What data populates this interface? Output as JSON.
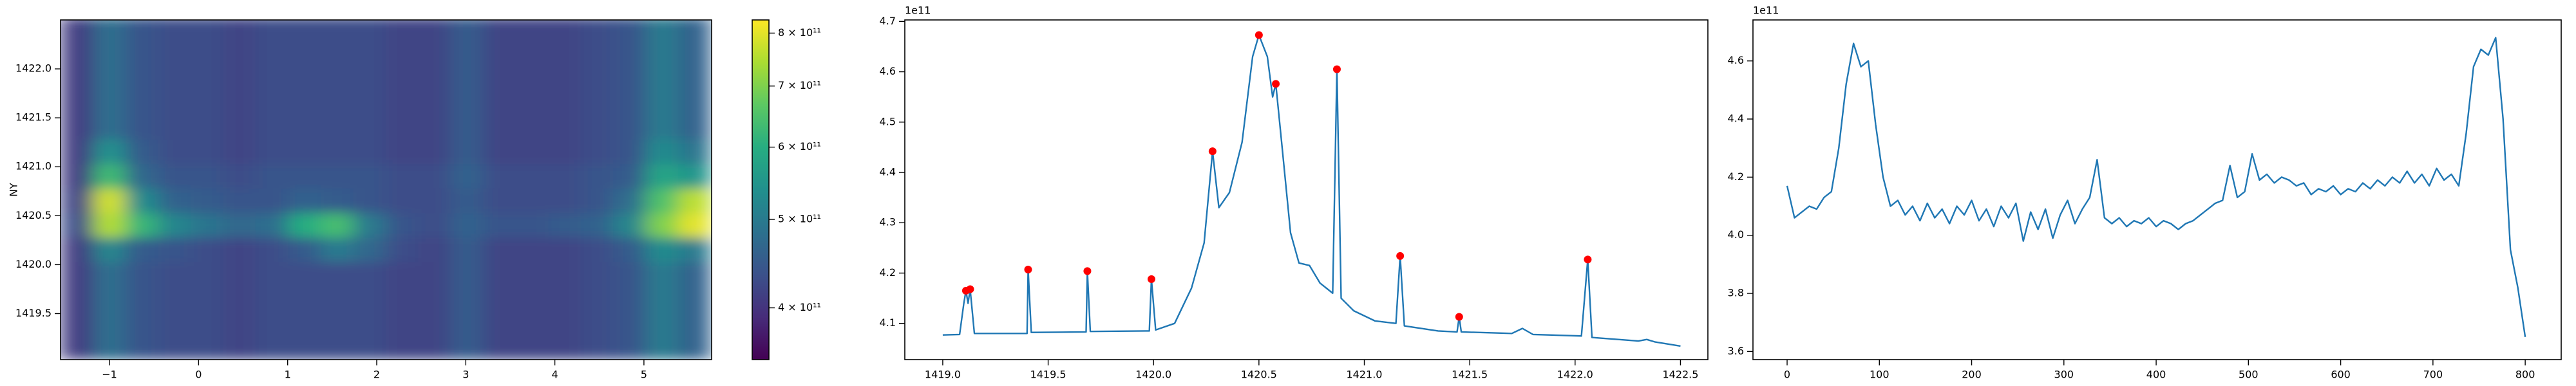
{
  "chart_data": [
    {
      "type": "heatmap",
      "ylabel": "NY",
      "xlim": [
        -1.55,
        5.76
      ],
      "ylim": [
        1419.03,
        1422.5
      ],
      "xticks": [
        {
          "value": -1,
          "label": "−1"
        },
        0,
        1,
        2,
        3,
        4,
        5
      ],
      "yticks": [
        1419.5,
        {
          "value": 1420,
          "label": "1420.0"
        },
        1420.5,
        {
          "value": 1421,
          "label": "1421.0"
        },
        1421.5,
        {
          "value": 1422,
          "label": "1422.0"
        }
      ],
      "x_edges": [
        -1.55,
        -1.185,
        -0.82,
        -0.455,
        -0.09,
        0.275,
        0.64,
        1.005,
        1.37,
        1.735,
        2.1,
        2.465,
        2.83,
        3.195,
        3.56,
        3.925,
        4.29,
        4.655,
        5.02,
        5.385,
        5.75
      ],
      "y_edges": [
        1419.03,
        1419.28,
        1419.53,
        1419.78,
        1420.03,
        1420.28,
        1420.53,
        1420.78,
        1421.03,
        1421.28,
        1421.53,
        1421.78,
        1422.03,
        1422.28,
        1422.53
      ],
      "z": [
        [
          410000000000.0,
          480000000000.0,
          440000000000.0,
          430000000000.0,
          430000000000.0,
          420000000000.0,
          430000000000.0,
          430000000000.0,
          430000000000.0,
          430000000000.0,
          420000000000.0,
          420000000000.0,
          450000000000.0,
          420000000000.0,
          420000000000.0,
          420000000000.0,
          430000000000.0,
          440000000000.0,
          500000000000.0,
          460000000000.0
        ],
        [
          410000000000.0,
          480000000000.0,
          440000000000.0,
          430000000000.0,
          430000000000.0,
          420000000000.0,
          430000000000.0,
          430000000000.0,
          430000000000.0,
          430000000000.0,
          420000000000.0,
          420000000000.0,
          450000000000.0,
          420000000000.0,
          420000000000.0,
          420000000000.0,
          430000000000.0,
          440000000000.0,
          500000000000.0,
          460000000000.0
        ],
        [
          410000000000.0,
          480000000000.0,
          440000000000.0,
          430000000000.0,
          430000000000.0,
          420000000000.0,
          430000000000.0,
          430000000000.0,
          430000000000.0,
          430000000000.0,
          420000000000.0,
          420000000000.0,
          450000000000.0,
          420000000000.0,
          420000000000.0,
          420000000000.0,
          430000000000.0,
          440000000000.0,
          500000000000.0,
          460000000000.0
        ],
        [
          410000000000.0,
          480000000000.0,
          440000000000.0,
          430000000000.0,
          430000000000.0,
          420000000000.0,
          430000000000.0,
          430000000000.0,
          430000000000.0,
          430000000000.0,
          420000000000.0,
          420000000000.0,
          450000000000.0,
          420000000000.0,
          420000000000.0,
          420000000000.0,
          430000000000.0,
          440000000000.0,
          500000000000.0,
          460000000000.0
        ],
        [
          410000000000.0,
          520000000000.0,
          450000000000.0,
          440000000000.0,
          430000000000.0,
          420000000000.0,
          430000000000.0,
          450000000000.0,
          500000000000.0,
          470000000000.0,
          430000000000.0,
          420000000000.0,
          450000000000.0,
          420000000000.0,
          420000000000.0,
          420000000000.0,
          430000000000.0,
          450000000000.0,
          530000000000.0,
          500000000000.0
        ],
        [
          430000000000.0,
          750000000000.0,
          620000000000.0,
          520000000000.0,
          490000000000.0,
          470000000000.0,
          480000000000.0,
          600000000000.0,
          640000000000.0,
          500000000000.0,
          440000000000.0,
          430000000000.0,
          460000000000.0,
          440000000000.0,
          440000000000.0,
          450000000000.0,
          460000000000.0,
          520000000000.0,
          700000000000.0,
          800000000000.0
        ],
        [
          420000000000.0,
          780000000000.0,
          530000000000.0,
          460000000000.0,
          450000000000.0,
          440000000000.0,
          440000000000.0,
          460000000000.0,
          450000000000.0,
          440000000000.0,
          430000000000.0,
          430000000000.0,
          450000000000.0,
          430000000000.0,
          430000000000.0,
          430000000000.0,
          440000000000.0,
          480000000000.0,
          650000000000.0,
          760000000000.0
        ],
        [
          410000000000.0,
          630000000000.0,
          470000000000.0,
          440000000000.0,
          440000000000.0,
          430000000000.0,
          440000000000.0,
          440000000000.0,
          440000000000.0,
          440000000000.0,
          430000000000.0,
          430000000000.0,
          460000000000.0,
          430000000000.0,
          430000000000.0,
          430000000000.0,
          440000000000.0,
          450000000000.0,
          580000000000.0,
          550000000000.0
        ],
        [
          410000000000.0,
          540000000000.0,
          450000000000.0,
          430000000000.0,
          430000000000.0,
          420000000000.0,
          430000000000.0,
          430000000000.0,
          430000000000.0,
          430000000000.0,
          420000000000.0,
          420000000000.0,
          450000000000.0,
          420000000000.0,
          420000000000.0,
          420000000000.0,
          430000000000.0,
          440000000000.0,
          530000000000.0,
          490000000000.0
        ],
        [
          410000000000.0,
          480000000000.0,
          440000000000.0,
          430000000000.0,
          430000000000.0,
          420000000000.0,
          430000000000.0,
          430000000000.0,
          430000000000.0,
          430000000000.0,
          420000000000.0,
          420000000000.0,
          450000000000.0,
          420000000000.0,
          420000000000.0,
          420000000000.0,
          430000000000.0,
          440000000000.0,
          500000000000.0,
          460000000000.0
        ],
        [
          410000000000.0,
          480000000000.0,
          440000000000.0,
          430000000000.0,
          430000000000.0,
          420000000000.0,
          430000000000.0,
          430000000000.0,
          430000000000.0,
          430000000000.0,
          420000000000.0,
          420000000000.0,
          450000000000.0,
          420000000000.0,
          420000000000.0,
          420000000000.0,
          430000000000.0,
          440000000000.0,
          500000000000.0,
          460000000000.0
        ],
        [
          410000000000.0,
          480000000000.0,
          440000000000.0,
          430000000000.0,
          430000000000.0,
          420000000000.0,
          430000000000.0,
          430000000000.0,
          430000000000.0,
          430000000000.0,
          420000000000.0,
          420000000000.0,
          450000000000.0,
          420000000000.0,
          420000000000.0,
          420000000000.0,
          430000000000.0,
          440000000000.0,
          500000000000.0,
          460000000000.0
        ],
        [
          410000000000.0,
          480000000000.0,
          440000000000.0,
          430000000000.0,
          430000000000.0,
          420000000000.0,
          430000000000.0,
          430000000000.0,
          430000000000.0,
          430000000000.0,
          420000000000.0,
          420000000000.0,
          450000000000.0,
          420000000000.0,
          420000000000.0,
          420000000000.0,
          430000000000.0,
          440000000000.0,
          500000000000.0,
          460000000000.0
        ],
        [
          410000000000.0,
          480000000000.0,
          440000000000.0,
          430000000000.0,
          430000000000.0,
          420000000000.0,
          430000000000.0,
          430000000000.0,
          430000000000.0,
          430000000000.0,
          420000000000.0,
          420000000000.0,
          450000000000.0,
          420000000000.0,
          420000000000.0,
          420000000000.0,
          430000000000.0,
          440000000000.0,
          500000000000.0,
          460000000000.0
        ]
      ],
      "colorbar": {
        "cmap": "viridis",
        "scale": "log",
        "lim": [
          351000000000.0,
          827000000000.0
        ],
        "ticks": [
          {
            "value": 400000000000.0,
            "label": "4 × 10¹¹"
          },
          {
            "value": 500000000000.0,
            "label": "5 × 10¹¹"
          },
          {
            "value": 600000000000.0,
            "label": "6 × 10¹¹"
          },
          {
            "value": 700000000000.0,
            "label": "7 × 10¹¹"
          },
          {
            "value": 800000000000.0,
            "label": "8 × 10¹¹"
          }
        ]
      }
    },
    {
      "type": "line",
      "offset_text": "1e11",
      "xlim": [
        1418.82,
        1422.63
      ],
      "ylim": [
        4.028,
        4.703
      ],
      "xticks": [
        {
          "value": 1419,
          "label": "1419.0"
        },
        1419.5,
        {
          "value": 1420,
          "label": "1420.0"
        },
        1420.5,
        {
          "value": 1421,
          "label": "1421.0"
        },
        1421.5,
        {
          "value": 1422,
          "label": "1422.0"
        },
        1422.5
      ],
      "yticks": [
        4.1,
        4.2,
        4.3,
        4.4,
        4.5,
        4.6,
        4.7
      ],
      "series": [
        {
          "style": "line",
          "color": "#1f77b4",
          "x": [
            1419.0,
            1419.08,
            1419.1,
            1419.11,
            1419.12,
            1419.13,
            1419.15,
            1419.4,
            1419.405,
            1419.42,
            1419.68,
            1419.686,
            1419.7,
            1419.98,
            1419.99,
            1420.01,
            1420.1,
            1420.18,
            1420.24,
            1420.28,
            1420.31,
            1420.36,
            1420.42,
            1420.47,
            1420.5,
            1420.54,
            1420.565,
            1420.58,
            1420.61,
            1420.65,
            1420.69,
            1420.74,
            1420.79,
            1420.85,
            1420.87,
            1420.89,
            1420.95,
            1421.05,
            1421.15,
            1421.17,
            1421.19,
            1421.35,
            1421.44,
            1421.45,
            1421.46,
            1421.7,
            1421.75,
            1421.8,
            1422.03,
            1422.06,
            1422.08,
            1422.3,
            1422.34,
            1422.38,
            1422.5
          ],
          "values": [
            4.077,
            4.078,
            4.14,
            4.165,
            4.14,
            4.168,
            4.08,
            4.08,
            4.207,
            4.082,
            4.083,
            4.204,
            4.084,
            4.085,
            4.188,
            4.087,
            4.1,
            4.17,
            4.26,
            4.442,
            4.33,
            4.36,
            4.46,
            4.63,
            4.673,
            4.63,
            4.55,
            4.576,
            4.45,
            4.28,
            4.22,
            4.215,
            4.18,
            4.16,
            4.605,
            4.15,
            4.125,
            4.105,
            4.1,
            4.234,
            4.095,
            4.085,
            4.083,
            4.113,
            4.083,
            4.08,
            4.09,
            4.078,
            4.075,
            4.227,
            4.072,
            4.065,
            4.068,
            4.063,
            4.055
          ]
        },
        {
          "style": "points",
          "color": "#ff0000",
          "x": [
            1419.11,
            1419.13,
            1419.405,
            1419.686,
            1419.99,
            1420.28,
            1420.5,
            1420.58,
            1420.87,
            1421.17,
            1421.45,
            1422.06
          ],
          "values": [
            4.165,
            4.168,
            4.207,
            4.204,
            4.188,
            4.442,
            4.673,
            4.576,
            4.605,
            4.234,
            4.113,
            4.227
          ]
        }
      ]
    },
    {
      "type": "line",
      "offset_text": "1e11",
      "xlim": [
        -37,
        839
      ],
      "ylim": [
        3.572,
        4.741
      ],
      "xticks": [
        0,
        100,
        200,
        300,
        400,
        500,
        600,
        700,
        800
      ],
      "yticks": [
        3.6,
        3.8,
        {
          "value": 4,
          "label": "4.0"
        },
        4.2,
        4.4,
        4.6
      ],
      "series": [
        {
          "style": "line",
          "color": "#1f77b4",
          "x": [
            0,
            8,
            16,
            24,
            32,
            40,
            48,
            56,
            64,
            72,
            80,
            88,
            96,
            104,
            112,
            120,
            128,
            136,
            144,
            152,
            160,
            168,
            176,
            184,
            192,
            200,
            208,
            216,
            224,
            232,
            240,
            248,
            256,
            264,
            272,
            280,
            288,
            296,
            304,
            312,
            320,
            328,
            336,
            344,
            352,
            360,
            368,
            376,
            384,
            392,
            400,
            408,
            416,
            424,
            432,
            440,
            448,
            456,
            464,
            472,
            480,
            488,
            496,
            504,
            512,
            520,
            528,
            536,
            544,
            552,
            560,
            568,
            576,
            584,
            592,
            600,
            608,
            616,
            624,
            632,
            640,
            648,
            656,
            664,
            672,
            680,
            688,
            696,
            704,
            712,
            720,
            728,
            736,
            744,
            752,
            760,
            768,
            776,
            784,
            792,
            800
          ],
          "values": [
            4.17,
            4.06,
            4.08,
            4.1,
            4.09,
            4.13,
            4.15,
            4.3,
            4.52,
            4.66,
            4.58,
            4.6,
            4.38,
            4.2,
            4.1,
            4.12,
            4.07,
            4.1,
            4.05,
            4.11,
            4.06,
            4.09,
            4.04,
            4.1,
            4.07,
            4.12,
            4.05,
            4.09,
            4.03,
            4.1,
            4.06,
            4.11,
            3.98,
            4.08,
            4.02,
            4.09,
            3.99,
            4.07,
            4.12,
            4.04,
            4.09,
            4.13,
            4.26,
            4.06,
            4.04,
            4.06,
            4.03,
            4.05,
            4.04,
            4.06,
            4.03,
            4.05,
            4.04,
            4.02,
            4.04,
            4.05,
            4.07,
            4.09,
            4.11,
            4.12,
            4.24,
            4.13,
            4.15,
            4.28,
            4.19,
            4.21,
            4.18,
            4.2,
            4.19,
            4.17,
            4.18,
            4.14,
            4.16,
            4.15,
            4.17,
            4.14,
            4.16,
            4.15,
            4.18,
            4.16,
            4.19,
            4.17,
            4.2,
            4.18,
            4.22,
            4.18,
            4.21,
            4.17,
            4.23,
            4.19,
            4.21,
            4.17,
            4.35,
            4.58,
            4.64,
            4.62,
            4.68,
            4.4,
            3.95,
            3.82,
            3.65
          ]
        }
      ]
    }
  ]
}
